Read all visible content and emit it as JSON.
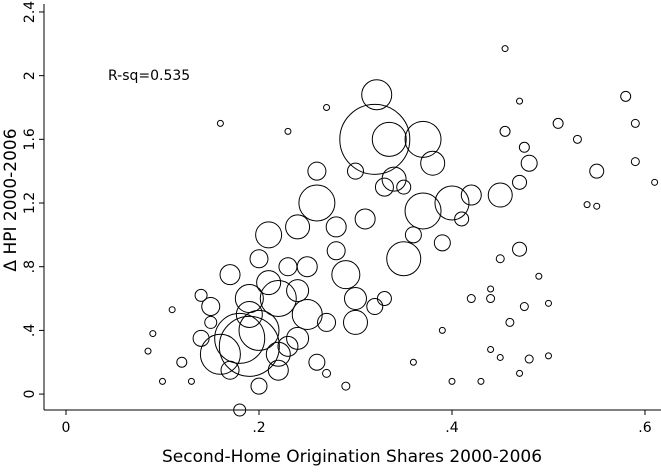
{
  "chart_data": {
    "type": "scatter",
    "x_label": "Second-Home Origination Shares 2000-2006",
    "y_label": "Δ HPI 2000-2006",
    "annotation": "R-sq=0.535",
    "annotation_color": "#1a1acc",
    "xlim": [
      -0.0228,
      0.6166
    ],
    "ylim": [
      -0.1,
      2.45
    ],
    "xticks": [
      0,
      {
        "value": 0.2,
        "label": ".2"
      },
      {
        "value": 0.4,
        "label": ".4"
      },
      {
        "value": 0.6,
        "label": ".6"
      }
    ],
    "yticks": [
      0,
      {
        "value": 0.4,
        "label": ".4"
      },
      {
        "value": 0.8,
        "label": ".8"
      },
      1.2,
      1.6,
      2,
      2.4
    ],
    "series": [
      {
        "color": "#000000",
        "x": [
          0.32,
          0.322,
          0.37,
          0.335,
          0.26,
          0.37,
          0.4,
          0.35,
          0.19,
          0.18,
          0.16,
          0.2,
          0.22,
          0.25,
          0.3,
          0.29,
          0.21,
          0.24,
          0.34,
          0.38,
          0.42,
          0.45,
          0.48,
          0.47,
          0.55,
          0.455,
          0.47,
          0.58,
          0.59,
          0.59,
          0.61,
          0.51,
          0.53,
          0.455,
          0.475,
          0.54,
          0.55,
          0.47,
          0.49,
          0.45,
          0.4,
          0.43,
          0.48,
          0.5,
          0.46,
          0.475,
          0.5,
          0.42,
          0.44,
          0.44,
          0.45,
          0.47,
          0.44,
          0.36,
          0.39,
          0.09,
          0.085,
          0.1,
          0.13,
          0.11,
          0.16,
          0.27,
          0.23,
          0.18,
          0.29,
          0.27,
          0.14,
          0.15,
          0.17,
          0.2,
          0.23,
          0.26,
          0.28,
          0.31,
          0.33,
          0.36,
          0.3,
          0.25,
          0.21,
          0.19,
          0.17,
          0.22,
          0.24,
          0.27,
          0.32,
          0.35,
          0.39,
          0.41,
          0.2,
          0.15,
          0.12,
          0.14,
          0.23,
          0.26,
          0.3,
          0.33,
          0.28,
          0.24,
          0.19,
          0.22
        ],
        "y": [
          1.6,
          1.88,
          1.6,
          1.6,
          1.2,
          1.15,
          1.2,
          0.85,
          0.3,
          0.35,
          0.25,
          0.4,
          0.6,
          0.5,
          0.45,
          0.75,
          1.0,
          1.05,
          1.35,
          1.45,
          1.25,
          1.25,
          1.45,
          1.33,
          1.4,
          2.17,
          1.84,
          1.87,
          1.7,
          1.46,
          1.33,
          1.7,
          1.6,
          1.65,
          1.55,
          1.19,
          1.18,
          0.91,
          0.74,
          0.85,
          0.08,
          0.08,
          0.22,
          0.24,
          0.45,
          0.55,
          0.57,
          0.6,
          0.6,
          0.28,
          0.23,
          0.13,
          0.66,
          0.2,
          0.4,
          0.38,
          0.27,
          0.08,
          0.08,
          0.53,
          1.7,
          1.8,
          1.65,
          -0.1,
          0.05,
          0.13,
          0.35,
          0.55,
          0.75,
          0.85,
          0.3,
          0.2,
          0.9,
          1.1,
          1.3,
          1.0,
          0.6,
          0.8,
          0.7,
          0.6,
          0.15,
          0.15,
          0.35,
          0.45,
          0.55,
          1.3,
          0.95,
          1.1,
          0.05,
          0.45,
          0.2,
          0.62,
          0.8,
          1.4,
          1.4,
          0.6,
          1.05,
          0.65,
          0.5,
          0.25
        ],
        "size": [
          35,
          15,
          18,
          17,
          18,
          18,
          17,
          17,
          30,
          25,
          20,
          20,
          18,
          15,
          12,
          14,
          13,
          12,
          12,
          12,
          10,
          12,
          8,
          7,
          7,
          3,
          3,
          5,
          4,
          4,
          3,
          5,
          4,
          5,
          5,
          3,
          3,
          7,
          3,
          4,
          3,
          3,
          4,
          3,
          4,
          4,
          3,
          4,
          4,
          3,
          3,
          3,
          3,
          3,
          3,
          3,
          3,
          3,
          3,
          3,
          3,
          3,
          3,
          6,
          4,
          4,
          8,
          9,
          10,
          9,
          10,
          8,
          9,
          10,
          9,
          8,
          11,
          10,
          12,
          14,
          9,
          10,
          11,
          9,
          8,
          7,
          8,
          7,
          8,
          6,
          5,
          6,
          9,
          9,
          8,
          7,
          10,
          11,
          13,
          12
        ]
      }
    ]
  }
}
